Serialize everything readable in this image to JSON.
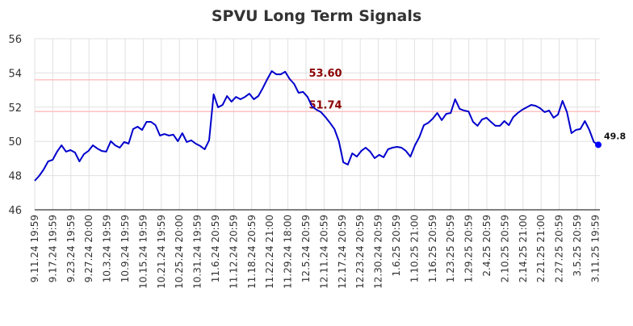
{
  "chart_data": {
    "type": "line",
    "title": "SPVU Long Term Signals",
    "xlabel": "",
    "ylabel": "",
    "ylim": [
      46,
      56
    ],
    "yticks": [
      46,
      48,
      50,
      52,
      54,
      56
    ],
    "grid": true,
    "xtick_labels": [
      "9.11.24 19:59",
      "9.17.24 19:59",
      "9.23.24 19:59",
      "9.27.24 20:00",
      "10.3.24 19:59",
      "10.9.24 19:59",
      "10.15.24 19:59",
      "10.21.24 19:59",
      "10.25.24 20:00",
      "10.31.24 19:59",
      "11.6.24 20:59",
      "11.12.24 20:59",
      "11.18.24 20:59",
      "11.22.24 21:00",
      "11.29.24 18:00",
      "12.5.24 20:59",
      "12.11.24 20:59",
      "12.17.24 20:59",
      "12.23.24 20:59",
      "12.30.24 20:59",
      "1.6.25 20:59",
      "1.10.25 21:00",
      "1.16.25 20:59",
      "1.23.25 20:59",
      "1.29.25 20:59",
      "2.4.25 20:59",
      "2.10.25 20:59",
      "2.14.25 21:00",
      "2.21.25 21:00",
      "2.27.25 20:59",
      "3.5.25 20:59",
      "3.11.25 19:59"
    ],
    "series": [
      {
        "name": "SPVU",
        "color": "#0000cc",
        "values": [
          47.7,
          47.98,
          48.36,
          48.83,
          48.92,
          49.4,
          49.77,
          49.4,
          49.49,
          49.35,
          48.83,
          49.25,
          49.44,
          49.77,
          49.58,
          49.44,
          49.4,
          50.01,
          49.77,
          49.63,
          49.96,
          49.87,
          50.72,
          50.86,
          50.67,
          51.14,
          51.14,
          50.95,
          50.34,
          50.43,
          50.34,
          50.39,
          50.01,
          50.48,
          49.96,
          50.06,
          49.87,
          49.73,
          49.54,
          50.06,
          52.75,
          51.99,
          52.13,
          52.65,
          52.32,
          52.6,
          52.46,
          52.6,
          52.79,
          52.46,
          52.65,
          53.12,
          53.64,
          54.11,
          53.92,
          53.92,
          54.07,
          53.64,
          53.36,
          52.84,
          52.89,
          52.6,
          52.04,
          51.85,
          51.71,
          51.42,
          51.09,
          50.72,
          50.01,
          48.78,
          48.64,
          49.3,
          49.11,
          49.44,
          49.63,
          49.4,
          49.02,
          49.21,
          49.07,
          49.54,
          49.63,
          49.68,
          49.63,
          49.44,
          49.11,
          49.77,
          50.25,
          50.95,
          51.09,
          51.33,
          51.66,
          51.24,
          51.61,
          51.66,
          52.46,
          51.9,
          51.8,
          51.75,
          51.14,
          50.91,
          51.28,
          51.38,
          51.14,
          50.91,
          50.91,
          51.19,
          50.95,
          51.42,
          51.66,
          51.85,
          51.99,
          52.13,
          52.08,
          51.94,
          51.71,
          51.8,
          51.38,
          51.57,
          52.37,
          51.71,
          50.48,
          50.67,
          50.72,
          51.19,
          50.67,
          49.96,
          49.8
        ]
      }
    ],
    "hlines": [
      {
        "value": 53.6,
        "label": "53.60",
        "color": "#ffc0c0",
        "label_color": "#8b0000"
      },
      {
        "value": 51.74,
        "label": "51.74",
        "color": "#ffc0c0",
        "label_color": "#8b0000"
      }
    ],
    "last_point": {
      "value": 49.8,
      "label": "49.8",
      "color": "#0000ff"
    }
  }
}
